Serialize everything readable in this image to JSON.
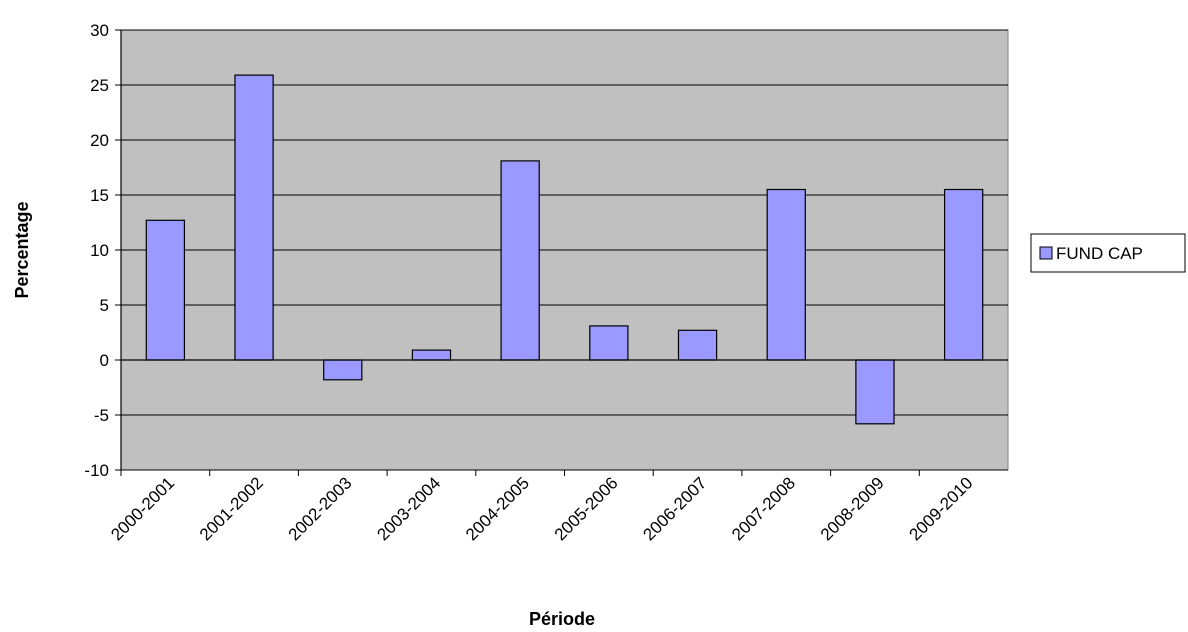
{
  "chart_data": {
    "type": "bar",
    "xlabel": "Période",
    "ylabel": "Percentage",
    "categories": [
      "2000-2001",
      "2001-2002",
      "2002-2003",
      "2003-2004",
      "2004-2005",
      "2005-2006",
      "2006-2007",
      "2007-2008",
      "2008-2009",
      "2009-2010"
    ],
    "series": [
      {
        "name": "FUND CAP",
        "values": [
          12.7,
          25.9,
          -1.8,
          0.9,
          18.1,
          3.1,
          2.7,
          15.5,
          -5.8,
          15.5
        ]
      }
    ],
    "ylim": [
      -10,
      30
    ],
    "ystep": 5,
    "grid": true,
    "legend": "right",
    "colors": {
      "bar": "#9999ff",
      "plot_bg": "#c0c0c0",
      "grid": "#000000"
    }
  }
}
